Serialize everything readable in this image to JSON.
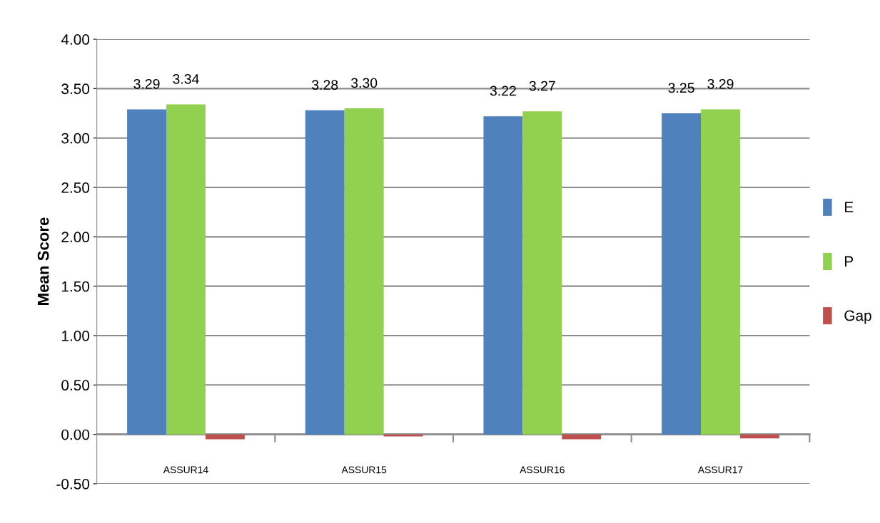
{
  "chart_data": {
    "type": "bar",
    "ylabel": "Mean Score",
    "categories": [
      "ASSUR14",
      "ASSUR15",
      "ASSUR16",
      "ASSUR17"
    ],
    "series": [
      {
        "name": "E",
        "color": "#4f81bd",
        "values": [
          3.29,
          3.28,
          3.22,
          3.25
        ],
        "value_labels": [
          "3.29",
          "3.28",
          "3.22",
          "3.25"
        ]
      },
      {
        "name": "P",
        "color": "#92d050",
        "values": [
          3.34,
          3.3,
          3.27,
          3.29
        ],
        "value_labels": [
          "3.34",
          "3.30",
          "3.27",
          "3.29"
        ]
      },
      {
        "name": "Gap",
        "color": "#c0504d",
        "values": [
          -0.05,
          -0.02,
          -0.05,
          -0.04
        ]
      }
    ],
    "ylim": [
      -0.5,
      4.0
    ],
    "yticks": [
      {
        "value": -0.5,
        "label": "-0.50"
      },
      {
        "value": 0,
        "label": "0.00"
      },
      {
        "value": 0.5,
        "label": "0.50"
      },
      {
        "value": 1.0,
        "label": "1.00"
      },
      {
        "value": 1.5,
        "label": "1.50"
      },
      {
        "value": 2.0,
        "label": "2.00"
      },
      {
        "value": 2.5,
        "label": "2.50"
      },
      {
        "value": 3.0,
        "label": "3.00"
      },
      {
        "value": 3.5,
        "label": "3.50"
      },
      {
        "value": 4.0,
        "label": "4.00"
      }
    ],
    "grid": "y",
    "legend": "right"
  }
}
